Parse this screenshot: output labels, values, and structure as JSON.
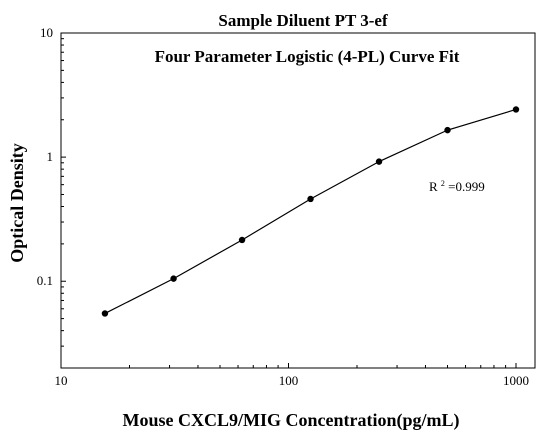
{
  "chart_data": {
    "type": "scatter",
    "title": "Sample Diluent PT 3-ef",
    "subtitle": "Four Parameter Logistic (4-PL) Curve Fit",
    "xlabel": "Mouse CXCL9/MIG Concentration(pg/mL)",
    "ylabel": "Optical Density",
    "xscale": "log",
    "yscale": "log",
    "xlim": [
      10,
      1000
    ],
    "ylim": [
      0.02,
      10
    ],
    "x_ticks": [
      {
        "value": 10,
        "label": "10"
      },
      {
        "value": 100,
        "label": "100"
      },
      {
        "value": 1000,
        "label": "1000"
      }
    ],
    "y_ticks": [
      {
        "value": 0.1,
        "label": "0.1"
      },
      {
        "value": 1,
        "label": "1"
      },
      {
        "value": 10,
        "label": "10"
      }
    ],
    "x": [
      15.6,
      31.25,
      62.5,
      125,
      250,
      500,
      1000
    ],
    "y": [
      0.055,
      0.105,
      0.215,
      0.46,
      0.92,
      1.65,
      2.42
    ],
    "fit_curve": "4-PL",
    "annotation": {
      "prefix": "R",
      "superscript": "2",
      "suffix": "=0.999"
    },
    "grid": false,
    "legend": "none",
    "colors": {
      "axis": "#000000",
      "marker": "#000000",
      "curve": "#000000",
      "background": "#ffffff"
    }
  }
}
